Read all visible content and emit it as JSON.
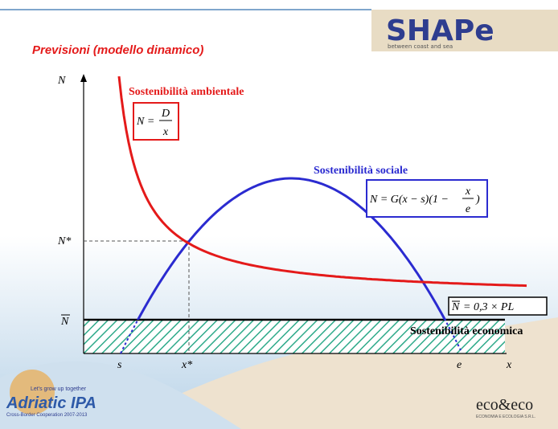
{
  "header": {
    "title": "Previsioni (modello dinamico)",
    "logo": "SHAPe",
    "logo_tagline": "between coast and sea"
  },
  "axes": {
    "y_label": "N",
    "x_label": "x",
    "n_star": "N*",
    "n_bar": "N",
    "s": "s",
    "x_star": "x*",
    "e": "e"
  },
  "ambientale": {
    "label": "Sostenibilità ambientale",
    "lhs": "N =",
    "num": "D",
    "den": "x"
  },
  "sociale": {
    "label": "Sostenibilità sociale",
    "lhs": "N = G(x − s)(1 −",
    "num": "x",
    "den": "e",
    "rhs": ")"
  },
  "economica": {
    "label": "Sostenibilità economica",
    "formula_n": "N",
    "formula_rest": "= 0,3 × PL"
  },
  "footer": {
    "ipa_tagline": "Let's grow up together",
    "ipa_name": "Adriatic IPA",
    "ipa_program": "Cross-Border Cooperation 2007-2013",
    "eco_logo": "eco&eco",
    "eco_sub": "ECONOMIA E ECOLOGIA S.R.L."
  }
}
